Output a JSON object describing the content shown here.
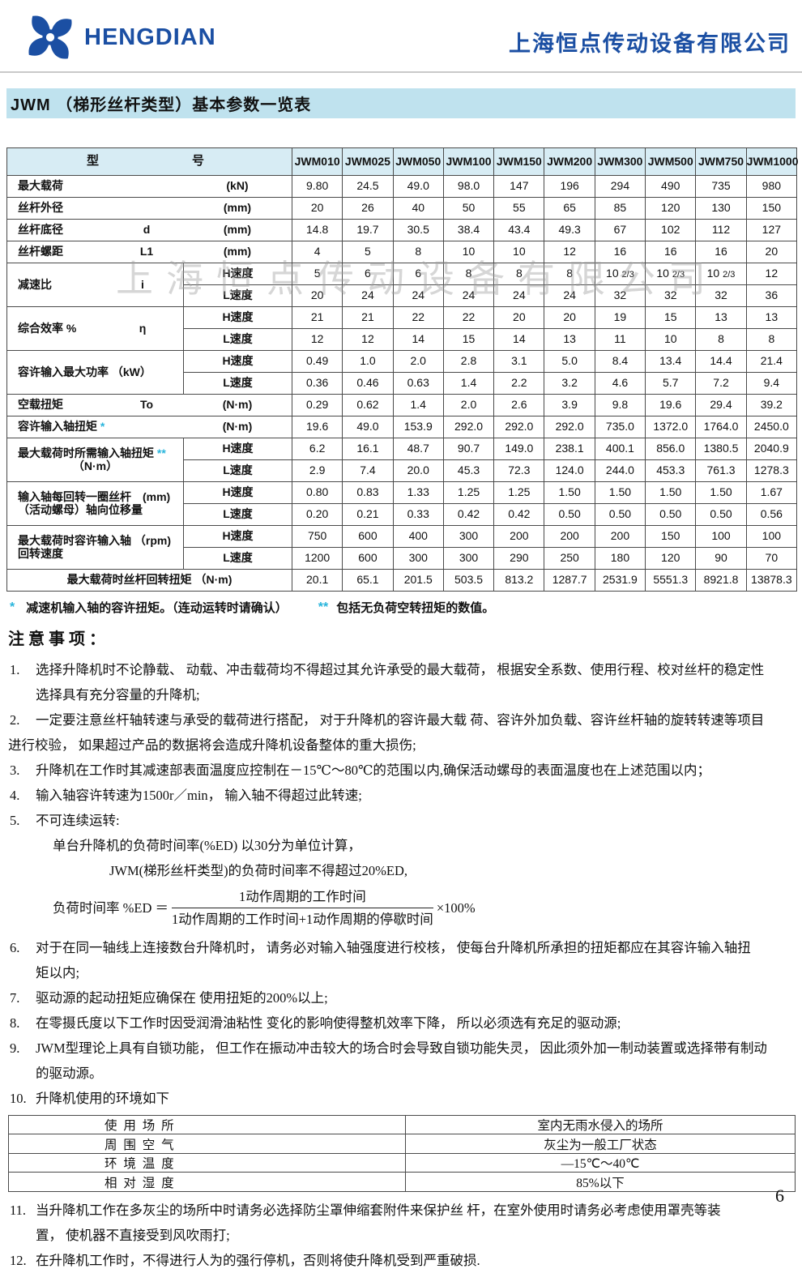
{
  "colors": {
    "brand_blue": "#1b4fa3",
    "title_bar_bg": "#bfe2ee",
    "table_header_bg": "#d7ecf4",
    "asterisk_cyan": "#29b5dc",
    "grid": "#4a4a4a",
    "watermark": "#9e9e9e"
  },
  "header": {
    "logo_word": "HENGDIAN",
    "company_name": "上海恒点传动设备有限公司"
  },
  "title_bar": {
    "title": "JWM （梯形丝杆类型）基本参数一览表"
  },
  "watermark_text": "上海恒点传动设备有限公司",
  "main_table": {
    "corner": {
      "left": "型",
      "right": "号"
    },
    "models": [
      "JWM010",
      "JWM025",
      "JWM050",
      "JWM100",
      "JWM150",
      "JWM200",
      "JWM300",
      "JWM500",
      "JWM750",
      "JWM1000"
    ],
    "speed_labels": {
      "h": "H速度",
      "l": "L速度"
    },
    "rows": [
      {
        "type": "simple",
        "label": "最大载荷",
        "symbol": "",
        "unit": "(kN)",
        "values": [
          "9.80",
          "24.5",
          "49.0",
          "98.0",
          "147",
          "196",
          "294",
          "490",
          "735",
          "980"
        ]
      },
      {
        "type": "simple",
        "label": "丝杆外径",
        "symbol": "",
        "unit": "(mm)",
        "values": [
          "20",
          "26",
          "40",
          "50",
          "55",
          "65",
          "85",
          "120",
          "130",
          "150"
        ]
      },
      {
        "type": "simple",
        "label": "丝杆底径",
        "symbol": "d",
        "unit": "(mm)",
        "values": [
          "14.8",
          "19.7",
          "30.5",
          "38.4",
          "43.4",
          "49.3",
          "67",
          "102",
          "112",
          "127"
        ]
      },
      {
        "type": "simple",
        "label": "丝杆螺距",
        "symbol": "L1",
        "unit": "(mm)",
        "values": [
          "4",
          "5",
          "8",
          "10",
          "10",
          "12",
          "16",
          "16",
          "16",
          "20"
        ]
      },
      {
        "type": "dual",
        "label": "减速比",
        "symbol": "i",
        "h": [
          "5",
          "6",
          "6",
          "8",
          "8",
          "8",
          "10 2/3",
          "10 2/3",
          "10 2/3",
          "12"
        ],
        "l": [
          "20",
          "24",
          "24",
          "24",
          "24",
          "24",
          "32",
          "32",
          "32",
          "36"
        ]
      },
      {
        "type": "dual",
        "label": "综合效率  %",
        "symbol": "η",
        "h": [
          "21",
          "21",
          "22",
          "22",
          "20",
          "20",
          "19",
          "15",
          "13",
          "13"
        ],
        "l": [
          "12",
          "12",
          "14",
          "15",
          "14",
          "13",
          "11",
          "10",
          "8",
          "8"
        ]
      },
      {
        "type": "dual",
        "label": "容许输入最大功率 （kW）",
        "h": [
          "0.49",
          "1.0",
          "2.0",
          "2.8",
          "3.1",
          "5.0",
          "8.4",
          "13.4",
          "14.4",
          "21.4"
        ],
        "l": [
          "0.36",
          "0.46",
          "0.63",
          "1.4",
          "2.2",
          "3.2",
          "4.6",
          "5.7",
          "7.2",
          "9.4"
        ]
      },
      {
        "type": "simple",
        "label": "空载扭矩",
        "symbol": "To",
        "unit": "(N·m)",
        "values": [
          "0.29",
          "0.62",
          "1.4",
          "2.0",
          "2.6",
          "3.9",
          "9.8",
          "19.6",
          "29.4",
          "39.2"
        ]
      },
      {
        "type": "simple",
        "label": "容许输入轴扭矩",
        "star": "*",
        "symbol": "",
        "unit": "(N·m)",
        "values": [
          "19.6",
          "49.0",
          "153.9",
          "292.0",
          "292.0",
          "292.0",
          "735.0",
          "1372.0",
          "1764.0",
          "2450.0"
        ]
      },
      {
        "type": "dual",
        "label": "最大载荷时所需输入轴扭矩",
        "star": "**",
        "label2": "（N·m）",
        "label2_center": true,
        "h": [
          "6.2",
          "16.1",
          "48.7",
          "90.7",
          "149.0",
          "238.1",
          "400.1",
          "856.0",
          "1380.5",
          "2040.9"
        ],
        "l": [
          "2.9",
          "7.4",
          "20.0",
          "45.3",
          "72.3",
          "124.0",
          "244.0",
          "453.3",
          "761.3",
          "1278.3"
        ]
      },
      {
        "type": "dual",
        "label": "输入轴每回转一圈丝杆　(mm)",
        "label2": "（活动螺母）轴向位移量",
        "h": [
          "0.80",
          "0.83",
          "1.33",
          "1.25",
          "1.25",
          "1.50",
          "1.50",
          "1.50",
          "1.50",
          "1.67"
        ],
        "l": [
          "0.20",
          "0.21",
          "0.33",
          "0.42",
          "0.42",
          "0.50",
          "0.50",
          "0.50",
          "0.50",
          "0.56"
        ]
      },
      {
        "type": "dual",
        "label": "最大载荷时容许输入轴 （rpm)",
        "label2": "回转速度",
        "h": [
          "750",
          "600",
          "400",
          "300",
          "200",
          "200",
          "200",
          "150",
          "100",
          "100"
        ],
        "l": [
          "1200",
          "600",
          "300",
          "300",
          "290",
          "250",
          "180",
          "120",
          "90",
          "70"
        ]
      },
      {
        "type": "span",
        "label": "最大载荷时丝杆回转扭矩 （N·m)",
        "values": [
          "20.1",
          "65.1",
          "201.5",
          "503.5",
          "813.2",
          "1287.7",
          "2531.9",
          "5551.3",
          "8921.8",
          "13878.3"
        ]
      }
    ]
  },
  "footnote": {
    "star1": "*",
    "text1": "减速机输入轴的容许扭矩。（连动运转时请确认）",
    "star2": "**",
    "text2": "包括无负荷空转扭矩的数值。"
  },
  "notes": {
    "heading": "注意事项：",
    "items": [
      {
        "num": "1.",
        "lines": [
          {
            "text": "选择升降机时不论静载、 动载、冲击载荷均不得超过其允许承受的最大载荷， 根据安全系数、使用行程、校对丝杆的稳定性"
          },
          {
            "text": "选择具有充分容量的升降机;",
            "indent": 34
          }
        ]
      },
      {
        "num": "2.",
        "lines": [
          {
            "text": "一定要注意丝杆轴转速与承受的载荷进行搭配， 对于升降机的容许最大载 荷、容许外加负载、容许丝杆轴的旋转转速等项目"
          },
          {
            "text": "进行校验， 如果超过产品的数据将会造成升降机设备整体的重大损伤;",
            "indent": 0
          }
        ]
      },
      {
        "num": "3.",
        "lines": [
          {
            "text": "升降机在工作时其减速部表面温度应控制在－15℃～80℃的范围以内,确保活动螺母的表面温度也在上述范围以内；"
          }
        ]
      },
      {
        "num": "4.",
        "lines": [
          {
            "text": "输入轴容许转速为1500r／min， 输入轴不得超过此转速;"
          }
        ]
      },
      {
        "num": "5.",
        "lines": [
          {
            "text": "不可连续运转:"
          }
        ],
        "sub_lines": [
          {
            "text": "单台升降机的负荷时间率(%ED) 以30分为单位计算，",
            "indent": 55
          },
          {
            "text": "JWM(梯形丝杆类型)的负荷时间率不得超过20%ED,",
            "indent": 125
          }
        ],
        "has_formula": true
      },
      {
        "num": "6.",
        "lines": [
          {
            "text": "对于在同一轴线上连接数台升降机时， 请务必对输入轴强度进行校核，  使每台升降机所承担的扭矩都应在其容许输入轴扭"
          },
          {
            "text": "矩以内;",
            "indent": 34
          }
        ]
      },
      {
        "num": "7.",
        "lines": [
          {
            "text": "驱动源的起动扭矩应确保在 使用扭矩的200%以上;"
          }
        ]
      },
      {
        "num": "8.",
        "lines": [
          {
            "text": "在零摄氏度以下工作时因受润滑油粘性 变化的影响使得整机效率下降， 所以必须选有充足的驱动源;"
          }
        ]
      },
      {
        "num": "9.",
        "lines": [
          {
            "text": "JWM型理论上具有自锁功能， 但工作在振动冲击较大的场合时会导致自锁功能失灵， 因此须外加一制动装置或选择带有制动"
          },
          {
            "text": "的驱动源。",
            "indent": 34
          }
        ]
      },
      {
        "num": "10.",
        "lines": [
          {
            "text": "升降机使用的环境如下"
          }
        ],
        "has_env_table": true
      },
      {
        "num": "11.",
        "lines": [
          {
            "text": "当升降机工作在多灰尘的场所中时请务必选择防尘罩伸缩套附件来保护丝 杆，在室外使用时请务必考虑使用罩壳等装"
          },
          {
            "text": "置， 使机器不直接受到风吹雨打;",
            "indent": 34
          }
        ]
      },
      {
        "num": "12.",
        "lines": [
          {
            "text": "在升降机工作时，不得进行人为的强行停机，否则将使升降机受到严重破损."
          }
        ]
      }
    ],
    "formula": {
      "lhs": "负荷时间率 %ED ＝",
      "numerator": "1动作周期的工作时间",
      "denominator": "1动作周期的工作时间+1动作周期的停歇时间",
      "rhs": "×100%"
    }
  },
  "env_table": {
    "rows": [
      {
        "label": "使 用 场 所",
        "value": "室内无雨水侵入的场所"
      },
      {
        "label": "周 围 空 气",
        "value": "灰尘为一般工厂状态"
      },
      {
        "label": "环 境 温 度",
        "value": "—15℃～40℃"
      },
      {
        "label": "相 对 湿 度",
        "value": "85%以下"
      }
    ]
  },
  "page_number": "6"
}
